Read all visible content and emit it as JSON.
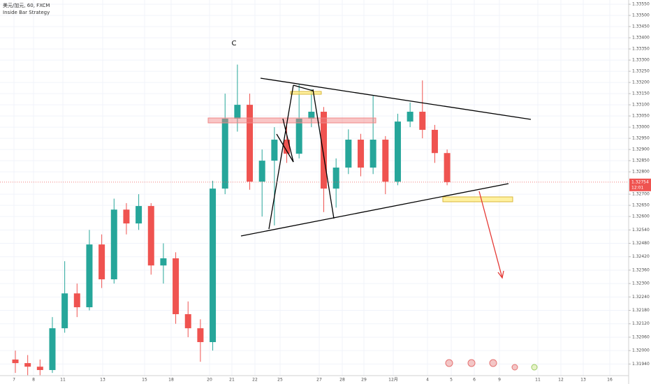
{
  "chart_data": {
    "type": "candlestick",
    "title": "美元/加元, 60, FXCM",
    "subtitle": "Inside Bar Strategy",
    "annotation": "C",
    "open": [
      1.3196,
      1.31944,
      1.31928,
      1.31913,
      1.321,
      1.32256,
      1.32194,
      1.32475,
      1.32319,
      1.32631,
      1.32569,
      1.32647,
      1.32381,
      1.32413,
      1.32163,
      1.321,
      1.32038,
      1.32725,
      1.33038,
      1.331,
      1.32756,
      1.3285,
      1.32944,
      1.32881,
      1.33038,
      1.33069,
      1.32725,
      1.32819,
      1.32944,
      1.32819,
      1.32944,
      1.32756,
      1.33025,
      1.33069,
      1.32988,
      1.32884
    ],
    "high": [
      1.32,
      1.3198,
      1.3196,
      1.3215,
      1.324,
      1.323,
      1.3254,
      1.3252,
      1.3268,
      1.3266,
      1.327,
      1.3266,
      1.3248,
      1.3244,
      1.3222,
      1.3214,
      1.3276,
      1.3315,
      1.3328,
      1.3315,
      1.329,
      1.33,
      1.3302,
      1.3319,
      1.3317,
      1.3309,
      1.3286,
      1.3299,
      1.3297,
      1.3314,
      1.3296,
      1.3306,
      1.3311,
      1.33209,
      1.3301,
      1.329
    ],
    "low": [
      1.319,
      1.3189,
      1.3189,
      1.319,
      1.3208,
      1.3215,
      1.3218,
      1.3228,
      1.323,
      1.3252,
      1.3254,
      1.3234,
      1.323,
      1.3212,
      1.3206,
      1.3195,
      1.32,
      1.327,
      1.3298,
      1.3272,
      1.326,
      1.3256,
      1.3284,
      1.3286,
      1.33,
      1.3262,
      1.3264,
      1.3279,
      1.3278,
      1.3279,
      1.327,
      1.3274,
      1.33,
      1.3295,
      1.3284,
      1.3274
    ],
    "close": [
      1.31944,
      1.31928,
      1.31913,
      1.321,
      1.32256,
      1.32194,
      1.32475,
      1.32319,
      1.32631,
      1.32569,
      1.32647,
      1.32381,
      1.32413,
      1.32163,
      1.321,
      1.32038,
      1.32725,
      1.33038,
      1.331,
      1.32756,
      1.3285,
      1.32944,
      1.32881,
      1.33038,
      1.33069,
      1.32725,
      1.32819,
      1.32944,
      1.32819,
      1.32944,
      1.32756,
      1.33025,
      1.33069,
      1.32988,
      1.32884,
      1.32754
    ],
    "up_color": "#26a69a",
    "down_color": "#ef5350",
    "last_price": 1.32754,
    "countdown": "12:01",
    "x_labels": [
      "7",
      "8",
      "11",
      "13",
      "15",
      "18",
      "20",
      "21",
      "22",
      "25",
      "27",
      "28",
      "29",
      "12月",
      "4",
      "5",
      "6",
      "9",
      "11",
      "12",
      "13",
      "16"
    ],
    "ylim": [
      1.31888,
      1.33569
    ],
    "yticks": [
      {
        "value": 1.3355,
        "label": "1.33550"
      },
      {
        "value": 1.335,
        "label": "1.33500"
      },
      {
        "value": 1.3345,
        "label": "1.33450"
      },
      {
        "value": 1.334,
        "label": "1.33400"
      },
      {
        "value": 1.3335,
        "label": "1.33350"
      },
      {
        "value": 1.333,
        "label": "1.33300"
      },
      {
        "value": 1.3325,
        "label": "1.33250"
      },
      {
        "value": 1.332,
        "label": "1.33200"
      },
      {
        "value": 1.3315,
        "label": "1.33150"
      },
      {
        "value": 1.331,
        "label": "1.33100"
      },
      {
        "value": 1.3305,
        "label": "1.33050"
      },
      {
        "value": 1.33,
        "label": "1.33000"
      },
      {
        "value": 1.3295,
        "label": "1.32950"
      },
      {
        "value": 1.329,
        "label": "1.32900"
      },
      {
        "value": 1.3285,
        "label": "1.32850"
      },
      {
        "value": 1.328,
        "label": "1.32800"
      },
      {
        "value": 1.327,
        "label": "1.32700"
      },
      {
        "value": 1.3265,
        "label": "1.32650"
      },
      {
        "value": 1.326,
        "label": "1.32600"
      },
      {
        "value": 1.3254,
        "label": "1.32540"
      },
      {
        "value": 1.3248,
        "label": "1.32480"
      },
      {
        "value": 1.3242,
        "label": "1.32420"
      },
      {
        "value": 1.3236,
        "label": "1.32360"
      },
      {
        "value": 1.323,
        "label": "1.32300"
      },
      {
        "value": 1.3224,
        "label": "1.32240"
      },
      {
        "value": 1.3218,
        "label": "1.32180"
      },
      {
        "value": 1.3212,
        "label": "1.32120"
      },
      {
        "value": 1.3206,
        "label": "1.32060"
      },
      {
        "value": 1.32,
        "label": "1.32000"
      },
      {
        "value": 1.3194,
        "label": "1.31940"
      }
    ],
    "grid": true
  }
}
